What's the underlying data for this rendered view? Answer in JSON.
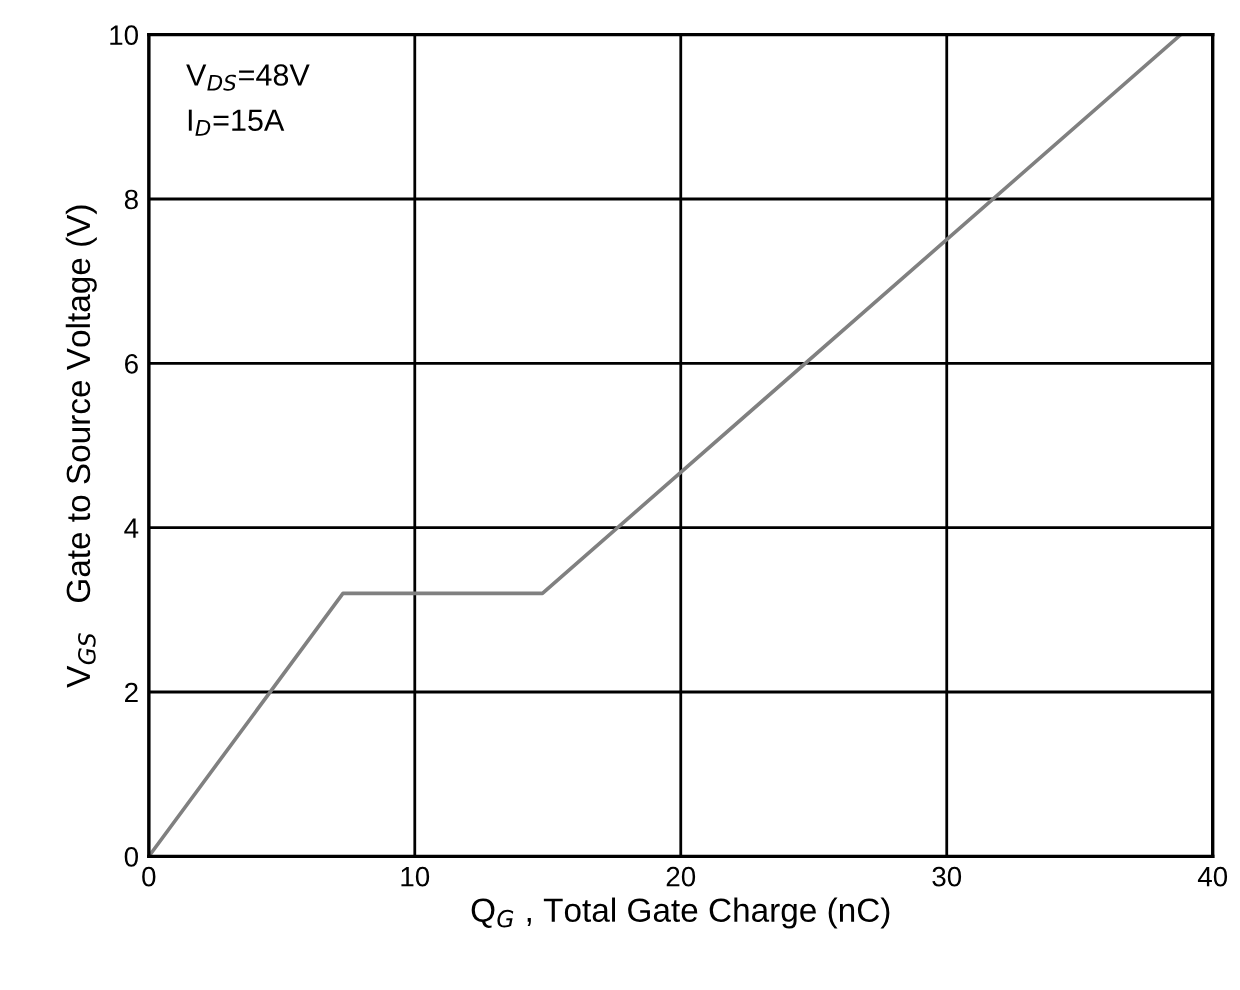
{
  "chart_data": {
    "type": "line",
    "x": [
      0,
      7.3,
      14.8,
      38.8
    ],
    "series": [
      {
        "color": "#808080",
        "values": [
          0,
          3.2,
          3.2,
          10
        ]
      }
    ],
    "xlabel": "Q$_{G}$ , Total Gate Charge (nC)",
    "ylabel": "V$_{GS}$   Gate to Source Voltage (V)",
    "annotations": [
      "V$_{DS}$=48V",
      "I$_{D}$=15A"
    ],
    "xlim": [
      0,
      40
    ],
    "ylim": [
      0,
      10
    ],
    "xticks": [
      0,
      10,
      20,
      30,
      40
    ],
    "yticks": [
      0,
      2,
      4,
      6,
      8,
      10
    ],
    "grid": true,
    "marker": "none",
    "line_style": "solid"
  }
}
